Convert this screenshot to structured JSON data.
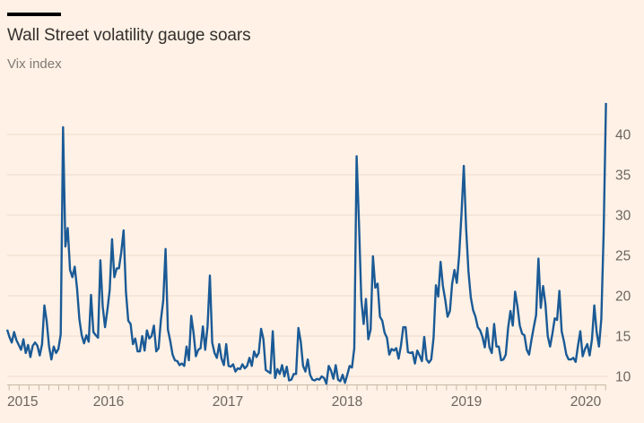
{
  "header": {
    "title": "Wall Street volatility gauge soars",
    "subtitle": "Vix index"
  },
  "colors": {
    "background": "#FFF1E5",
    "line": "#1A5A96",
    "gridline": "#EEDCCD",
    "axis_line": "#C9B7A6",
    "axis_label": "#6B655F",
    "title": "#33302E",
    "subtitle": "#807973",
    "motif": "#000000"
  },
  "chart_data": {
    "type": "line",
    "title": "Wall Street volatility gauge soars",
    "subtitle": "Vix index",
    "x_range": [
      2015.15,
      2020.17
    ],
    "x_tick_labels": [
      "2015",
      "2016",
      "2017",
      "2018",
      "2019",
      "2020"
    ],
    "x_minor_ticks": "monthly",
    "y_ticks": [
      10,
      15,
      20,
      25,
      30,
      35,
      40
    ],
    "y_axis_side": "right",
    "ylim": [
      8.5,
      44.5
    ],
    "grid": "horizontal",
    "legend": "none",
    "sampling": "approximately weekly, uniform over x_range",
    "series": [
      {
        "name": "Vix index",
        "values": [
          15.8,
          14.9,
          14.2,
          15.5,
          14.5,
          13.9,
          13.3,
          14.6,
          12.9,
          13.9,
          12.4,
          13.8,
          14.2,
          13.8,
          12.6,
          14.0,
          18.8,
          16.8,
          13.7,
          12.1,
          13.7,
          12.9,
          13.4,
          15.2,
          40.9,
          26.1,
          28.4,
          23.2,
          22.3,
          23.6,
          20.9,
          17.1,
          15.1,
          14.1,
          15.1,
          14.3,
          20.1,
          15.5,
          15.1,
          14.8,
          24.4,
          18.7,
          16.1,
          18.2,
          20.7,
          27.0,
          22.3,
          23.4,
          23.4,
          25.4,
          28.1,
          20.5,
          16.9,
          16.5,
          14.0,
          14.7,
          13.1,
          13.1,
          15.0,
          13.2,
          15.7,
          14.7,
          15.0,
          16.3,
          13.1,
          13.5,
          17.0,
          19.4,
          25.8,
          15.8,
          14.4,
          12.7,
          12.0,
          11.9,
          11.4,
          11.6,
          11.3,
          13.7,
          12.0,
          17.5,
          15.4,
          12.5,
          13.3,
          13.5,
          16.2,
          13.3,
          16.2,
          22.5,
          14.2,
          12.9,
          12.3,
          14.0,
          12.2,
          11.4,
          14.0,
          11.3,
          11.2,
          11.5,
          10.6,
          11.0,
          10.9,
          11.5,
          11.0,
          11.3,
          12.3,
          11.3,
          13.1,
          12.4,
          12.9,
          15.9,
          14.6,
          10.8,
          10.6,
          10.4,
          15.6,
          9.8,
          10.9,
          10.3,
          11.4,
          10.0,
          11.2,
          9.5,
          9.6,
          10.3,
          10.3,
          16.0,
          14.3,
          11.3,
          10.6,
          12.1,
          10.2,
          9.6,
          9.5,
          9.7,
          9.6,
          10.0,
          9.8,
          9.1,
          11.3,
          10.7,
          9.7,
          11.4,
          9.6,
          9.4,
          10.2,
          9.2,
          10.2,
          11.3,
          11.1,
          13.5,
          37.3,
          29.1,
          19.6,
          16.5,
          19.6,
          14.6,
          15.8,
          24.9,
          21.0,
          21.5,
          17.4,
          16.9,
          15.4,
          14.8,
          12.7,
          13.4,
          13.2,
          13.5,
          12.2,
          13.8,
          16.1,
          16.1,
          13.0,
          12.9,
          13.0,
          11.6,
          13.2,
          12.6,
          11.9,
          14.9,
          12.1,
          11.7,
          12.1,
          14.8,
          21.3,
          19.9,
          24.2,
          21.2,
          19.5,
          17.4,
          18.1,
          21.5,
          23.2,
          21.6,
          25.0,
          30.1,
          36.1,
          28.3,
          23.0,
          19.8,
          18.2,
          17.4,
          16.1,
          15.7,
          14.9,
          13.6,
          16.0,
          13.6,
          12.9,
          16.5,
          13.7,
          13.7,
          12.0,
          12.1,
          12.7,
          16.0,
          18.1,
          16.3,
          20.5,
          18.7,
          16.3,
          15.3,
          15.1,
          13.3,
          12.7,
          14.5,
          16.1,
          17.6,
          24.6,
          18.5,
          21.2,
          19.0,
          15.0,
          13.7,
          15.3,
          17.2,
          17.0,
          20.6,
          15.6,
          14.3,
          12.7,
          12.1,
          12.1,
          12.3,
          11.8,
          13.8,
          15.6,
          12.5,
          13.4,
          14.0,
          12.6,
          14.6,
          18.8,
          15.5,
          13.7,
          17.1,
          27.7,
          43.9
        ]
      }
    ]
  }
}
